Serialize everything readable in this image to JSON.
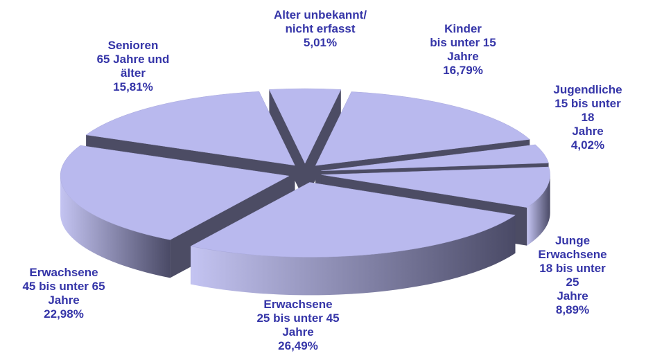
{
  "chart_data": {
    "type": "pie3d",
    "categories": [
      "Alter unbekannt/\nnicht erfasst",
      "Kinder\nbis unter 15\nJahre",
      "Jugendliche\n15 bis unter 18\nJahre",
      "Junge\nErwachsene\n18 bis unter 25\nJahre",
      "Erwachsene\n25 bis unter 45\nJahre",
      "Erwachsene\n45 bis unter 65\nJahre",
      "Senioren\n65 Jahre und\nälter"
    ],
    "values": [
      5.01,
      16.79,
      4.02,
      8.89,
      26.49,
      22.98,
      15.81
    ],
    "value_labels": [
      "5,01%",
      "16,79%",
      "4,02%",
      "8,89%",
      "26,49%",
      "22,98%",
      "15,81%"
    ],
    "color": "#b9b9ee"
  }
}
